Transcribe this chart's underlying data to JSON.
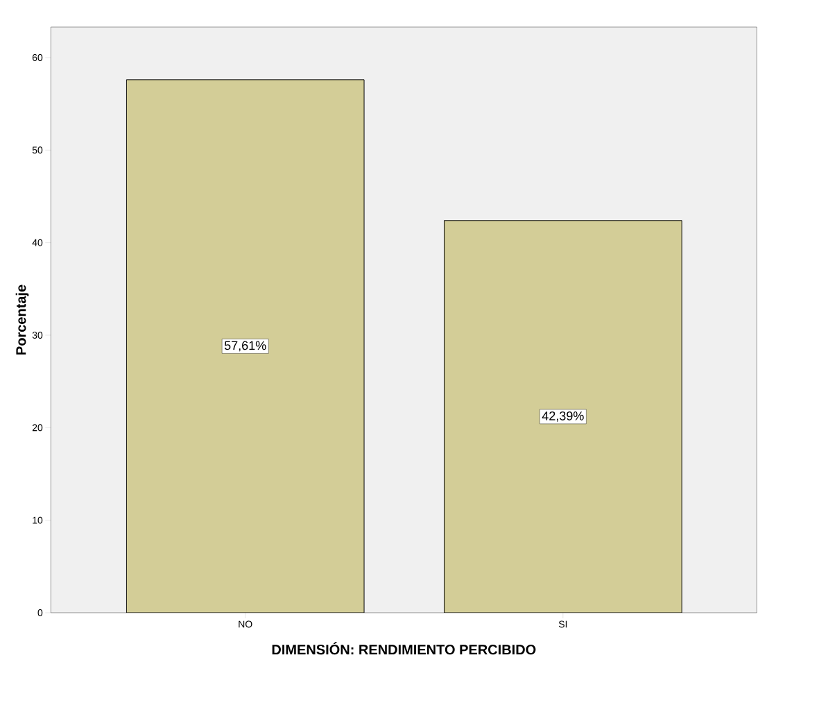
{
  "chart_data": {
    "type": "bar",
    "xlabel": "DIMENSIÓN: RENDIMIENTO PERCIBIDO",
    "ylabel": "Porcentaje",
    "categories": [
      "NO",
      "SI"
    ],
    "values": [
      57.61,
      42.39
    ],
    "value_labels": [
      "57,61%",
      "42,39%"
    ],
    "color": "#d3cd97",
    "ylim": [
      0,
      63.3
    ],
    "yticks": [
      0,
      10,
      20,
      30,
      40,
      50,
      60
    ],
    "grid": false
  }
}
